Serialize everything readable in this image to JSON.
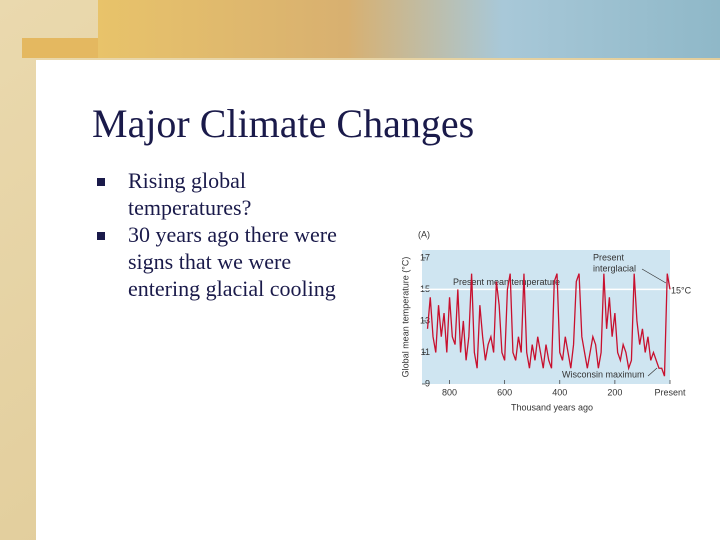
{
  "slide": {
    "title": "Major Climate Changes",
    "bullets": [
      [
        "Rising global",
        "temperatures?"
      ],
      [
        "30 years ago there were",
        "signs that we were",
        "entering glacial cooling"
      ]
    ]
  },
  "chart_data": {
    "type": "line",
    "panel_label": "(A)",
    "y_label": "Global mean temperature (°C)",
    "x_label": "Thousand years ago",
    "x": [
      880,
      870,
      860,
      850,
      840,
      830,
      820,
      810,
      800,
      790,
      780,
      770,
      760,
      750,
      740,
      730,
      720,
      710,
      700,
      690,
      680,
      670,
      660,
      650,
      640,
      630,
      620,
      610,
      600,
      590,
      580,
      570,
      560,
      550,
      540,
      530,
      520,
      510,
      500,
      490,
      480,
      470,
      460,
      450,
      440,
      430,
      420,
      410,
      400,
      390,
      380,
      370,
      360,
      350,
      340,
      330,
      320,
      310,
      300,
      290,
      280,
      270,
      260,
      250,
      240,
      230,
      220,
      210,
      200,
      190,
      180,
      170,
      160,
      150,
      140,
      130,
      120,
      110,
      100,
      90,
      80,
      70,
      60,
      50,
      40,
      30,
      20,
      10,
      0
    ],
    "series": [
      {
        "name": "Global mean temperature",
        "color": "#c8102e",
        "values": [
          12.5,
          14.5,
          12,
          11,
          14,
          12,
          13.5,
          11,
          14.5,
          12,
          11.5,
          15,
          11,
          13,
          10.5,
          12,
          16,
          11,
          10,
          14,
          12,
          10.5,
          11.5,
          12,
          11,
          15.5,
          14,
          11,
          10.5,
          15,
          16,
          11,
          10.5,
          12,
          11,
          16,
          11,
          10,
          11.5,
          10.5,
          12,
          11,
          10,
          11.5,
          10.5,
          10,
          15.5,
          16,
          11,
          10.5,
          12,
          11,
          10,
          11.5,
          15.5,
          16,
          12,
          11,
          10,
          11,
          12,
          11.5,
          10,
          11,
          16,
          12.5,
          14.5,
          12,
          13.5,
          11,
          10.5,
          11.5,
          11,
          10,
          10.5,
          16,
          13,
          11.5,
          12.5,
          11,
          12,
          10.5,
          11,
          10.5,
          10,
          10,
          9.5,
          16,
          15
        ]
      }
    ],
    "xlim": [
      900,
      0
    ],
    "ylim": [
      9,
      17.5
    ],
    "xticks": [
      800,
      600,
      400,
      200,
      {
        "value": 0,
        "label": "Present"
      }
    ],
    "yticks": [
      9,
      11,
      13,
      15,
      17
    ],
    "mean_line": {
      "value": 15,
      "label": "Present mean temperature"
    },
    "annotations": [
      "Present",
      "interglacial",
      "15°C",
      "Wisconsin maximum"
    ]
  }
}
